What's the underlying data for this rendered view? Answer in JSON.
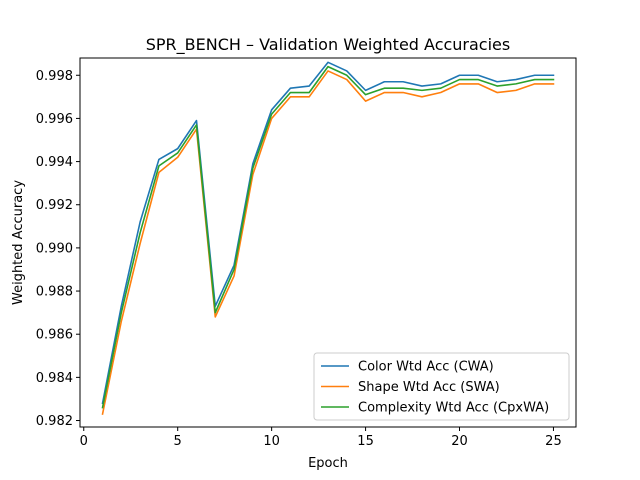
{
  "chart_data": {
    "type": "line",
    "title": "SPR_BENCH – Validation Weighted Accuracies",
    "xlabel": "Epoch",
    "ylabel": "Weighted Accuracy",
    "xlim": [
      -0.2,
      26.2
    ],
    "ylim": [
      0.9817,
      0.9988
    ],
    "xticks": [
      0,
      5,
      10,
      15,
      20,
      25
    ],
    "yticks": [
      0.982,
      0.984,
      0.986,
      0.988,
      0.99,
      0.992,
      0.994,
      0.996,
      0.998
    ],
    "grid": false,
    "legend_position": "lower-right",
    "x": [
      1,
      2,
      3,
      4,
      5,
      6,
      7,
      8,
      9,
      10,
      11,
      12,
      13,
      14,
      15,
      16,
      17,
      18,
      19,
      20,
      21,
      22,
      23,
      24,
      25
    ],
    "series": [
      {
        "name": "Color Wtd Acc (CWA)",
        "color": "#1f77b4",
        "values": [
          0.9828,
          0.9873,
          0.9912,
          0.9941,
          0.9946,
          0.9959,
          0.9873,
          0.9892,
          0.9939,
          0.9964,
          0.9974,
          0.9975,
          0.9986,
          0.9982,
          0.9973,
          0.9977,
          0.9977,
          0.9975,
          0.9976,
          0.998,
          0.998,
          0.9977,
          0.9978,
          0.998,
          0.998
        ]
      },
      {
        "name": "Shape Wtd Acc (SWA)",
        "color": "#ff7f0e",
        "values": [
          0.9823,
          0.9866,
          0.9902,
          0.9935,
          0.9942,
          0.9955,
          0.9868,
          0.9887,
          0.9934,
          0.996,
          0.997,
          0.997,
          0.9982,
          0.9978,
          0.9968,
          0.9972,
          0.9972,
          0.997,
          0.9972,
          0.9976,
          0.9976,
          0.9972,
          0.9973,
          0.9976,
          0.9976
        ]
      },
      {
        "name": "Complexity Wtd Acc (CpxWA)",
        "color": "#2ca02c",
        "values": [
          0.9826,
          0.987,
          0.9907,
          0.9938,
          0.9944,
          0.9957,
          0.987,
          0.989,
          0.9937,
          0.9962,
          0.9972,
          0.9972,
          0.9984,
          0.998,
          0.9971,
          0.9974,
          0.9974,
          0.9973,
          0.9974,
          0.9978,
          0.9978,
          0.9975,
          0.9976,
          0.9978,
          0.9978
        ]
      }
    ]
  }
}
